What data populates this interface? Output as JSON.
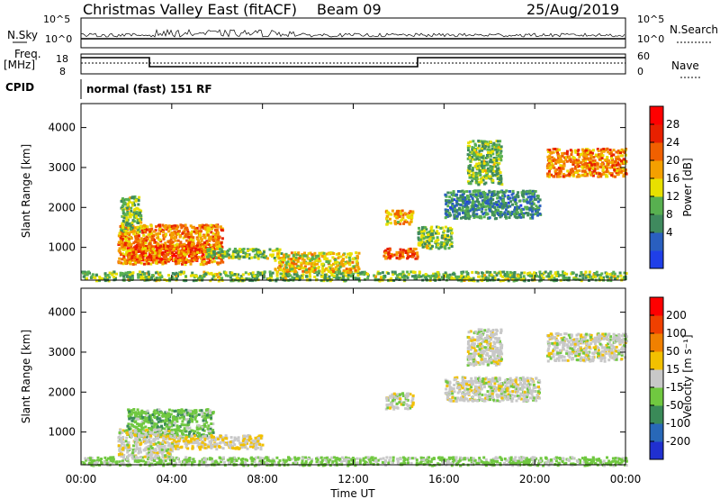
{
  "header": {
    "station": "Christmas Valley East (fitACF)",
    "beam": "Beam 09",
    "date": "25/Aug/2019"
  },
  "nsky_panel": {
    "left_label": "N.Sky",
    "right_label": "N.Search",
    "left_ticks": [
      "10^5",
      "10^0"
    ],
    "right_ticks": [
      "10^5",
      "10^0"
    ]
  },
  "freq_panel": {
    "left_label_1": "Freq.",
    "left_label_2": "[MHz]",
    "right_label": "Nave",
    "left_ticks": [
      "18",
      "8"
    ],
    "right_ticks": [
      "60",
      "0"
    ]
  },
  "cpid_panel": {
    "label": "CPID",
    "text": "normal (fast) 151 RF"
  },
  "power_panel": {
    "ylabel": "Slant Range [km]",
    "yticks": [
      "4000",
      "3000",
      "2000",
      "1000"
    ],
    "colorbar_title": "Power [dB]",
    "colorbar_ticks": [
      "28",
      "24",
      "20",
      "16",
      "12",
      "8",
      "4"
    ],
    "colors": [
      "#1f3fe8",
      "#2a5fbf",
      "#3f8a5e",
      "#58b050",
      "#e8e000",
      "#f4a000",
      "#f06000",
      "#e82000",
      "#ff0000"
    ]
  },
  "velocity_panel": {
    "ylabel": "Slant Range [km]",
    "yticks": [
      "4000",
      "3000",
      "2000",
      "1000"
    ],
    "colorbar_title": "Velocity [m s⁻¹]",
    "colorbar_ticks": [
      "200",
      "100",
      "50",
      "15",
      "-15",
      "-50",
      "-100",
      "-200"
    ],
    "colors": [
      "#2030d0",
      "#2868b8",
      "#3a8a58",
      "#70c840",
      "#c8c8c8",
      "#f2c000",
      "#f08000",
      "#f04000",
      "#ff0000"
    ]
  },
  "xaxis": {
    "ticks": [
      "00:00",
      "04:00",
      "08:00",
      "12:00",
      "16:00",
      "20:00",
      "00:00"
    ],
    "label": "Time UT"
  },
  "chart_data": [
    {
      "type": "heatmap",
      "title": "Power [dB]",
      "xlabel": "Time UT",
      "ylabel": "Slant Range [km]",
      "x_range": [
        "00:00",
        "24:00"
      ],
      "ylim": [
        180,
        4600
      ],
      "zlim": [
        0,
        30
      ],
      "blobs": [
        {
          "t0": 0.0,
          "t1": 24.0,
          "r0": 190,
          "r1": 420,
          "v": 12
        },
        {
          "t0": 2.0,
          "t1": 5.8,
          "r0": 700,
          "r1": 1100,
          "v": 28
        },
        {
          "t0": 1.6,
          "t1": 6.2,
          "r0": 600,
          "r1": 1600,
          "v": 20
        },
        {
          "t0": 1.7,
          "t1": 2.6,
          "r0": 1400,
          "r1": 2300,
          "v": 12
        },
        {
          "t0": 5.5,
          "t1": 8.8,
          "r0": 750,
          "r1": 1000,
          "v": 12
        },
        {
          "t0": 8.5,
          "t1": 12.2,
          "r0": 400,
          "r1": 900,
          "v": 16
        },
        {
          "t0": 13.3,
          "t1": 14.8,
          "r0": 750,
          "r1": 1000,
          "v": 22
        },
        {
          "t0": 13.4,
          "t1": 14.6,
          "r0": 1600,
          "r1": 1950,
          "v": 18
        },
        {
          "t0": 14.8,
          "t1": 16.3,
          "r0": 1000,
          "r1": 1550,
          "v": 12
        },
        {
          "t0": 16.0,
          "t1": 20.2,
          "r0": 1750,
          "r1": 2450,
          "v": 8
        },
        {
          "t0": 17.0,
          "t1": 18.5,
          "r0": 2600,
          "r1": 3700,
          "v": 12
        },
        {
          "t0": 20.5,
          "t1": 24.0,
          "r0": 2800,
          "r1": 3500,
          "v": 20
        }
      ]
    },
    {
      "type": "heatmap",
      "title": "Velocity [m s⁻¹]",
      "xlabel": "Time UT",
      "ylabel": "Slant Range [km]",
      "x_range": [
        "00:00",
        "24:00"
      ],
      "ylim": [
        180,
        4600
      ],
      "zlim": [
        -250,
        250
      ],
      "blobs": [
        {
          "t0": 0.0,
          "t1": 24.0,
          "r0": 190,
          "r1": 400,
          "v": -40
        },
        {
          "t0": 2.0,
          "t1": 5.8,
          "r0": 900,
          "r1": 1600,
          "v": -60
        },
        {
          "t0": 4.0,
          "t1": 8.0,
          "r0": 600,
          "r1": 950,
          "v": 30
        },
        {
          "t0": 1.6,
          "t1": 4.0,
          "r0": 400,
          "r1": 1100,
          "v": 0
        },
        {
          "t0": 13.4,
          "t1": 14.6,
          "r0": 1600,
          "r1": 2000,
          "v": 0
        },
        {
          "t0": 16.0,
          "t1": 20.2,
          "r0": 1800,
          "r1": 2400,
          "v": 0
        },
        {
          "t0": 17.0,
          "t1": 18.5,
          "r0": 2700,
          "r1": 3600,
          "v": 0
        },
        {
          "t0": 20.5,
          "t1": 24.0,
          "r0": 2800,
          "r1": 3500,
          "v": 0
        }
      ]
    }
  ]
}
